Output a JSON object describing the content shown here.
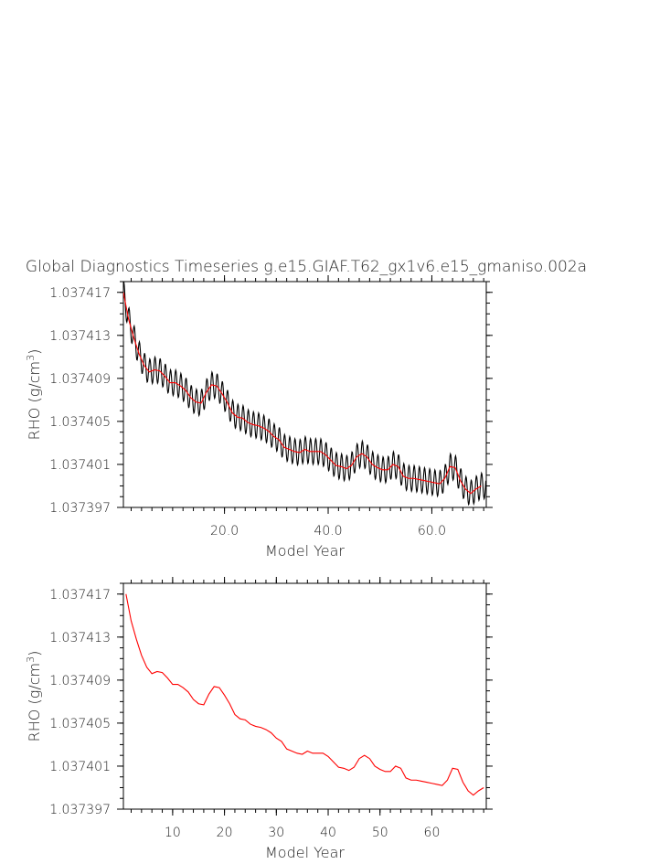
{
  "title": "Global Diagnostics Timeseries g.e15.GIAF.T62_gx1v6.e15_gmaniso.002a",
  "chart_data": [
    {
      "type": "line",
      "xlabel": "Model Year",
      "ylabel_text": "RHO (g/cm",
      "ylabel_sup": "3",
      "ylabel_close": ")",
      "xlim": [
        0.5,
        70.5
      ],
      "ylim": [
        1.037397,
        1.037418
      ],
      "xticks": [
        20,
        40,
        60
      ],
      "xtick_labels": [
        "20.0",
        "40.0",
        "60.0"
      ],
      "yticks": [
        1.037417,
        1.037413,
        1.037409,
        1.037405,
        1.037401,
        1.037397
      ],
      "ytick_labels": [
        "1.037417",
        "1.037413",
        "1.037409",
        "1.037405",
        "1.037401",
        "1.037397"
      ],
      "series": [
        {
          "kind": "monthly",
          "color": "#000000",
          "annual_mean": [
            1.037417,
            1.0374145,
            1.0374128,
            1.0374113,
            1.0374102,
            1.0374096,
            1.0374098,
            1.0374097,
            1.0374092,
            1.0374086,
            1.0374086,
            1.0374083,
            1.0374079,
            1.0374072,
            1.0374068,
            1.0374067,
            1.0374077,
            1.0374084,
            1.0374083,
            1.0374076,
            1.0374068,
            1.0374058,
            1.0374054,
            1.0374053,
            1.0374049,
            1.0374047,
            1.0374046,
            1.0374044,
            1.0374041,
            1.0374036,
            1.0374033,
            1.0374026,
            1.0374024,
            1.0374022,
            1.0374021,
            1.0374024,
            1.0374022,
            1.0374022,
            1.0374022,
            1.0374019,
            1.0374014,
            1.0374009,
            1.0374008,
            1.0374006,
            1.0374009,
            1.0374017,
            1.037402,
            1.0374017,
            1.037401,
            1.0374007,
            1.0374005,
            1.0374005,
            1.037401,
            1.0374008,
            1.0373999,
            1.0373997,
            1.0373997,
            1.0373996,
            1.0373995,
            1.0373994,
            1.0373993,
            1.0373992,
            1.0373997,
            1.0374008,
            1.0374007,
            1.0373995,
            1.0373987,
            1.0373983,
            1.0373987,
            1.037399
          ],
          "amplitude": 1.2e-06
        },
        {
          "kind": "annual",
          "color": "#ff0000",
          "x": [
            0.5,
            1.5,
            2.5,
            3.5,
            4.5,
            5.5,
            6.5,
            7.5,
            8.5,
            9.5,
            10.5,
            11.5,
            12.5,
            13.5,
            14.5,
            15.5,
            16.5,
            17.5,
            18.5,
            19.5,
            20.5,
            21.5,
            22.5,
            23.5,
            24.5,
            25.5,
            26.5,
            27.5,
            28.5,
            29.5,
            30.5,
            31.5,
            32.5,
            33.5,
            34.5,
            35.5,
            36.5,
            37.5,
            38.5,
            39.5,
            40.5,
            41.5,
            42.5,
            43.5,
            44.5,
            45.5,
            46.5,
            47.5,
            48.5,
            49.5,
            50.5,
            51.5,
            52.5,
            53.5,
            54.5,
            55.5,
            56.5,
            57.5,
            58.5,
            59.5,
            60.5,
            61.5,
            62.5,
            63.5,
            64.5,
            65.5,
            66.5,
            67.5,
            68.5,
            69.5
          ],
          "y": [
            1.037417,
            1.0374145,
            1.0374128,
            1.0374113,
            1.0374102,
            1.0374096,
            1.0374098,
            1.0374097,
            1.0374092,
            1.0374086,
            1.0374086,
            1.0374083,
            1.0374079,
            1.0374072,
            1.0374068,
            1.0374067,
            1.0374077,
            1.0374084,
            1.0374083,
            1.0374076,
            1.0374068,
            1.0374058,
            1.0374054,
            1.0374053,
            1.0374049,
            1.0374047,
            1.0374046,
            1.0374044,
            1.0374041,
            1.0374036,
            1.0374033,
            1.0374026,
            1.0374024,
            1.0374022,
            1.0374021,
            1.0374024,
            1.0374022,
            1.0374022,
            1.0374022,
            1.0374019,
            1.0374014,
            1.0374009,
            1.0374008,
            1.0374006,
            1.0374009,
            1.0374017,
            1.037402,
            1.0374017,
            1.037401,
            1.0374007,
            1.0374005,
            1.0374005,
            1.037401,
            1.0374008,
            1.0373999,
            1.0373997,
            1.0373997,
            1.0373996,
            1.0373995,
            1.0373994,
            1.0373993,
            1.0373992,
            1.0373997,
            1.0374008,
            1.0374007,
            1.0373995,
            1.0373987,
            1.0373983,
            1.0373987,
            1.037399
          ]
        }
      ]
    },
    {
      "type": "line",
      "xlabel": "Model Year",
      "ylabel_text": "RHO (g/cm",
      "ylabel_sup": "3",
      "ylabel_close": ")",
      "xlim": [
        0.5,
        70.5
      ],
      "ylim": [
        1.037397,
        1.037418
      ],
      "xticks": [
        10,
        20,
        30,
        40,
        50,
        60
      ],
      "xtick_labels": [
        "10",
        "20",
        "30",
        "40",
        "50",
        "60"
      ],
      "yticks": [
        1.037417,
        1.037413,
        1.037409,
        1.037405,
        1.037401,
        1.037397
      ],
      "ytick_labels": [
        "1.037417",
        "1.037413",
        "1.037409",
        "1.037405",
        "1.037401",
        "1.037397"
      ],
      "series": [
        {
          "kind": "annual",
          "color": "#ff0000",
          "x": [
            1,
            2,
            3,
            4,
            5,
            6,
            7,
            8,
            9,
            10,
            11,
            12,
            13,
            14,
            15,
            16,
            17,
            18,
            19,
            20,
            21,
            22,
            23,
            24,
            25,
            26,
            27,
            28,
            29,
            30,
            31,
            32,
            33,
            34,
            35,
            36,
            37,
            38,
            39,
            40,
            41,
            42,
            43,
            44,
            45,
            46,
            47,
            48,
            49,
            50,
            51,
            52,
            53,
            54,
            55,
            56,
            57,
            58,
            59,
            60,
            61,
            62,
            63,
            64,
            65,
            66,
            67,
            68,
            69,
            70
          ],
          "y": [
            1.037417,
            1.0374145,
            1.0374128,
            1.0374113,
            1.0374102,
            1.0374096,
            1.0374098,
            1.0374097,
            1.0374092,
            1.0374086,
            1.0374086,
            1.0374083,
            1.0374079,
            1.0374072,
            1.0374068,
            1.0374067,
            1.0374077,
            1.0374084,
            1.0374083,
            1.0374076,
            1.0374068,
            1.0374058,
            1.0374054,
            1.0374053,
            1.0374049,
            1.0374047,
            1.0374046,
            1.0374044,
            1.0374041,
            1.0374036,
            1.0374033,
            1.0374026,
            1.0374024,
            1.0374022,
            1.0374021,
            1.0374024,
            1.0374022,
            1.0374022,
            1.0374022,
            1.0374019,
            1.0374014,
            1.0374009,
            1.0374008,
            1.0374006,
            1.0374009,
            1.0374017,
            1.037402,
            1.0374017,
            1.037401,
            1.0374007,
            1.0374005,
            1.0374005,
            1.037401,
            1.0374008,
            1.0373999,
            1.0373997,
            1.0373997,
            1.0373996,
            1.0373995,
            1.0373994,
            1.0373993,
            1.0373992,
            1.0373997,
            1.0374008,
            1.0374007,
            1.0373995,
            1.0373987,
            1.0373983,
            1.0373987,
            1.037399
          ]
        }
      ]
    }
  ]
}
